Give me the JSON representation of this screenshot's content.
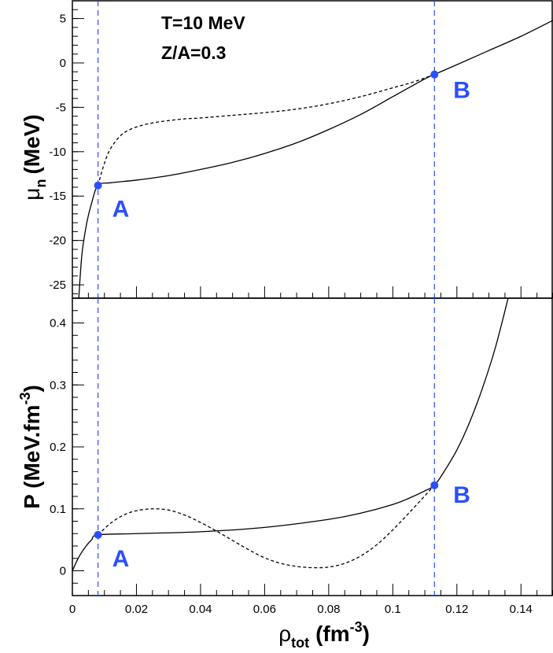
{
  "chart_data": [
    {
      "type": "line",
      "panel": "top",
      "ylabel": "μn (MeV)",
      "ylabel_main": "μ",
      "ylabel_sub": "n",
      "ylabel_unit": "(MeV)",
      "xlim": [
        0,
        0.15
      ],
      "ylim": [
        -26.5,
        7
      ],
      "yticks": [
        5,
        0,
        -5,
        -10,
        -15,
        -20,
        -25
      ],
      "ytick_labels": [
        "5",
        "0",
        "-5",
        "-10",
        "-15",
        "-20",
        "-25"
      ],
      "annotations": [
        "T=10 MeV",
        "Z/A=0.3"
      ],
      "series": [
        {
          "style": "solid",
          "x": [
            0.002,
            0.003,
            0.0045,
            0.006,
            0.008,
            0.012,
            0.02,
            0.03,
            0.04,
            0.05,
            0.06,
            0.07,
            0.08,
            0.09,
            0.1,
            0.11,
            0.113,
            0.12,
            0.13,
            0.14,
            0.15
          ],
          "y": [
            -26.5,
            -21.5,
            -18.0,
            -15.8,
            -13.8,
            -13.5,
            -13.2,
            -12.7,
            -12.0,
            -11.2,
            -10.2,
            -9.0,
            -7.5,
            -5.8,
            -3.8,
            -1.8,
            -1.3,
            -0.2,
            1.4,
            3.0,
            4.8
          ]
        },
        {
          "style": "dashed",
          "x": [
            0.008,
            0.01,
            0.012,
            0.015,
            0.018,
            0.022,
            0.026,
            0.03,
            0.035,
            0.04,
            0.05,
            0.06,
            0.07,
            0.08,
            0.09,
            0.1,
            0.106,
            0.113
          ],
          "y": [
            -13.8,
            -11.3,
            -9.6,
            -8.2,
            -7.5,
            -7.0,
            -6.7,
            -6.5,
            -6.3,
            -6.2,
            -5.9,
            -5.6,
            -5.2,
            -4.6,
            -3.8,
            -2.8,
            -2.2,
            -1.3
          ]
        }
      ],
      "points": [
        {
          "label": "A",
          "x": 0.008,
          "y": -13.8
        },
        {
          "label": "B",
          "x": 0.113,
          "y": -1.3
        }
      ],
      "vlines": [
        0.008,
        0.113
      ]
    },
    {
      "type": "line",
      "panel": "bottom",
      "ylabel": "P (MeV.fm-3)",
      "ylabel_main": "P (MeV.fm",
      "ylabel_sup": "-3",
      "ylabel_close": ")",
      "xlabel": "ρtot (fm-3)",
      "xlabel_main": "ρ",
      "xlabel_sub": "tot",
      "xlabel_unit": "(fm",
      "xlabel_sup": "-3",
      "xlabel_close": ")",
      "xlim": [
        0,
        0.15
      ],
      "ylim": [
        -0.04,
        0.44
      ],
      "xticks": [
        0,
        0.02,
        0.04,
        0.06,
        0.08,
        0.1,
        0.12,
        0.14
      ],
      "xtick_labels": [
        "0",
        "0.02",
        "0.04",
        "0.06",
        "0.08",
        "0.1",
        "0.12",
        "0.14"
      ],
      "yticks": [
        0,
        0.1,
        0.2,
        0.3,
        0.4
      ],
      "ytick_labels": [
        "0",
        "0.1",
        "0.2",
        "0.3",
        "0.4"
      ],
      "series": [
        {
          "style": "solid",
          "x": [
            0,
            0.002,
            0.004,
            0.006,
            0.008,
            0.02,
            0.04,
            0.06,
            0.08,
            0.09,
            0.1,
            0.105,
            0.11,
            0.113,
            0.116,
            0.12,
            0.124,
            0.128,
            0.132,
            0.136
          ],
          "y": [
            0.0,
            0.022,
            0.038,
            0.05,
            0.058,
            0.06,
            0.063,
            0.07,
            0.083,
            0.093,
            0.107,
            0.117,
            0.129,
            0.138,
            0.16,
            0.195,
            0.24,
            0.295,
            0.36,
            0.44
          ]
        },
        {
          "style": "dashed",
          "x": [
            0.008,
            0.012,
            0.016,
            0.02,
            0.025,
            0.03,
            0.035,
            0.04,
            0.045,
            0.05,
            0.055,
            0.06,
            0.065,
            0.07,
            0.075,
            0.08,
            0.085,
            0.09,
            0.095,
            0.1,
            0.105,
            0.11,
            0.113
          ],
          "y": [
            0.058,
            0.077,
            0.09,
            0.097,
            0.1,
            0.098,
            0.09,
            0.078,
            0.064,
            0.049,
            0.034,
            0.021,
            0.012,
            0.007,
            0.005,
            0.006,
            0.012,
            0.024,
            0.042,
            0.066,
            0.093,
            0.121,
            0.138
          ]
        }
      ],
      "points": [
        {
          "label": "A",
          "x": 0.008,
          "y": 0.058
        },
        {
          "label": "B",
          "x": 0.113,
          "y": 0.138
        }
      ],
      "vlines": [
        0.008,
        0.113
      ]
    }
  ],
  "colors": {
    "curve": "#000000",
    "marker": "#2a4fff",
    "marker_label": "#2a4fff",
    "vline": "#2a4fff"
  }
}
